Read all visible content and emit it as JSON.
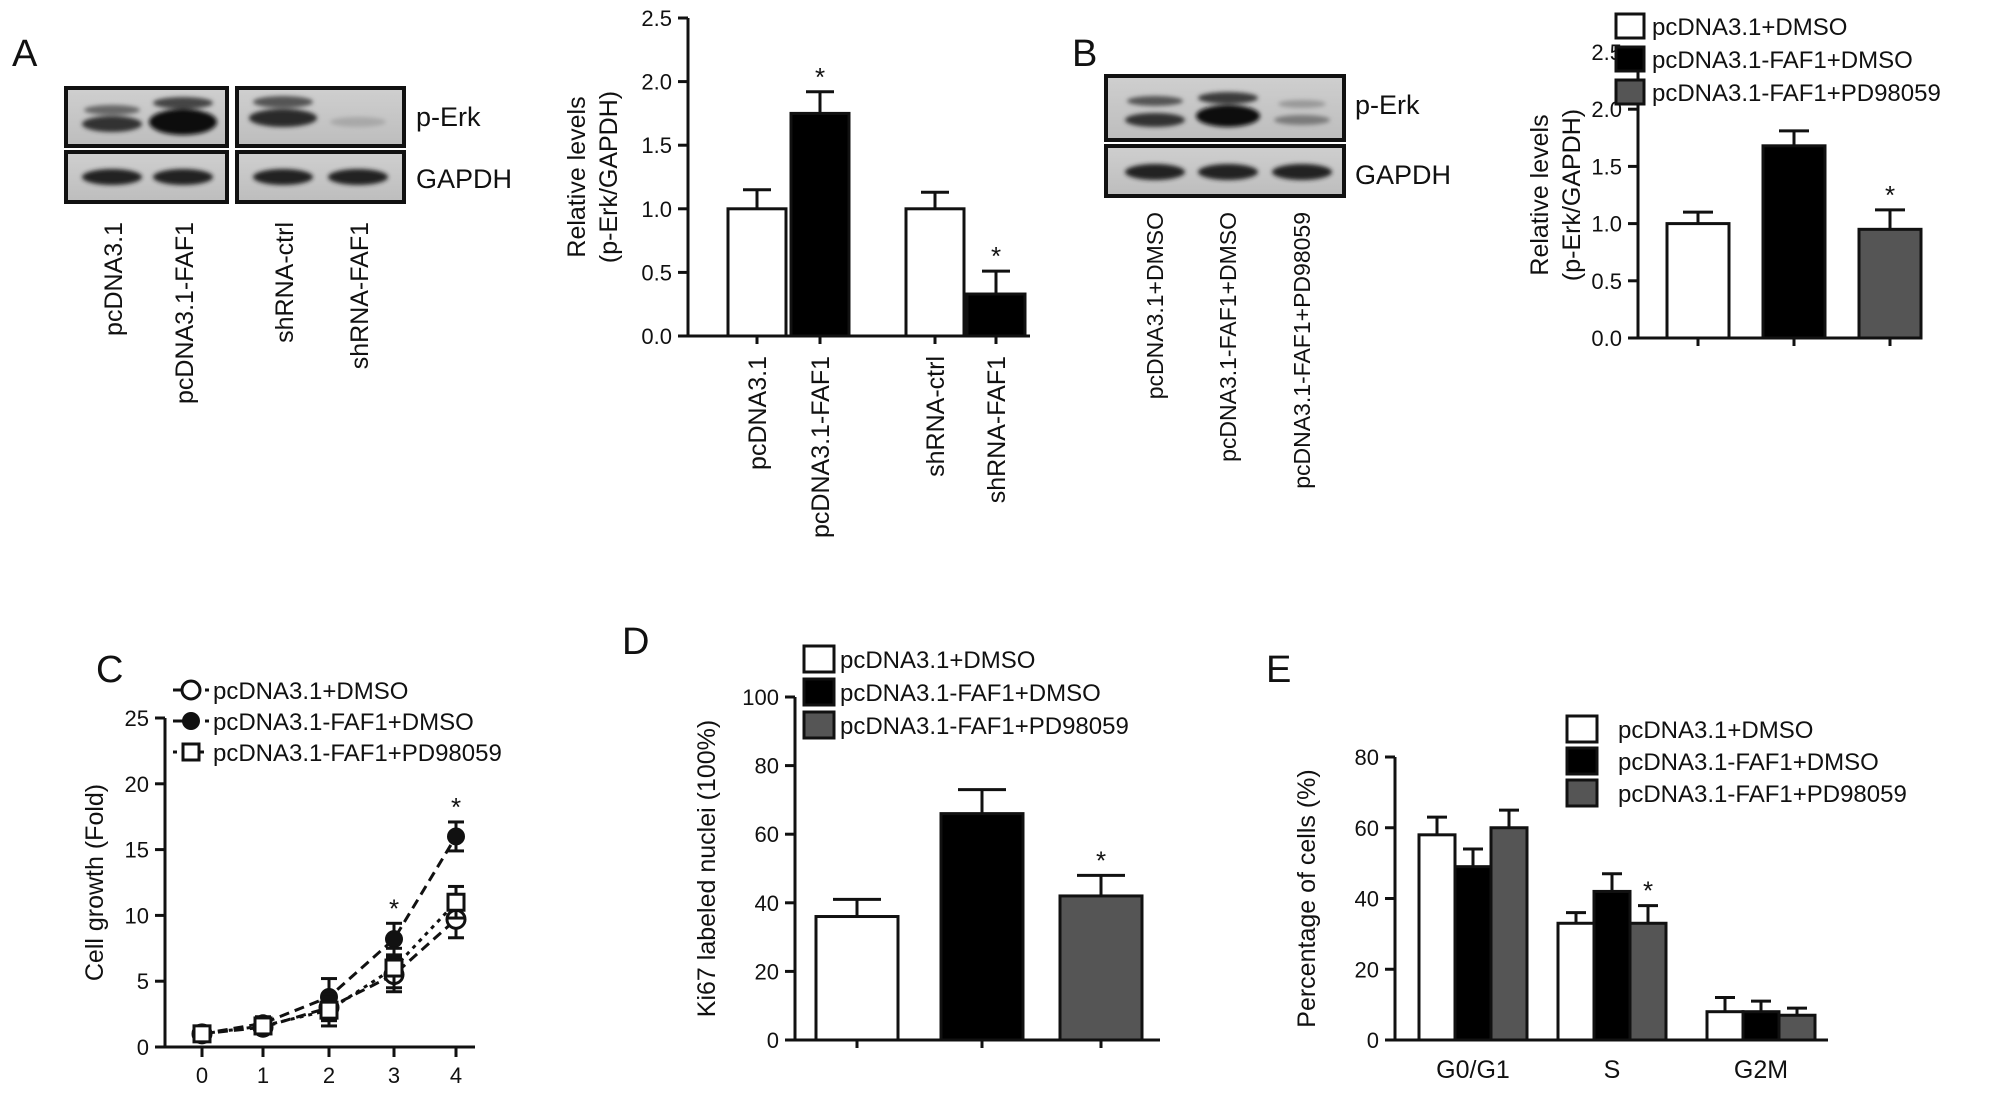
{
  "figure": {
    "panel_A": {
      "letter": "A",
      "blot": {
        "bands": [
          "p-Erk",
          "GAPDH"
        ],
        "lanes": [
          "pcDNA3.1",
          "pcDNA3.1-FAF1",
          "shRNA-ctrl",
          "shRNA-FAF1"
        ]
      }
    },
    "panel_B": {
      "letter": "B",
      "blot": {
        "bands": [
          "p-Erk",
          "GAPDH"
        ],
        "lanes": [
          "pcDNA3.1+DMSO",
          "pcDNA3.1-FAF1+DMSO",
          "pcDNA3.1-FAF1+PD98059"
        ]
      }
    },
    "panel_C": {
      "letter": "C"
    },
    "panel_D": {
      "letter": "D"
    },
    "panel_E": {
      "letter": "E"
    }
  },
  "colors": {
    "white_bar": "#ffffff",
    "black_bar": "#000000",
    "gray_bar": "#555555",
    "axis": "#111111"
  },
  "chart_data": [
    {
      "id": "A",
      "type": "bar",
      "categories": [
        "pcDNA3.1",
        "pcDNA3.1-FAF1",
        "shRNA-ctrl",
        "shRNA-FAF1"
      ],
      "values": [
        1.0,
        1.75,
        1.0,
        0.33
      ],
      "errors": [
        0.15,
        0.17,
        0.13,
        0.18
      ],
      "fills": [
        "white",
        "black",
        "white",
        "black"
      ],
      "significant": [
        false,
        true,
        false,
        true
      ],
      "significance_mark": "*",
      "ylabel": [
        "Relative levels",
        "(p-Erk/GAPDH)"
      ],
      "ylim": [
        0,
        2.5
      ],
      "yticks": [
        "0.0",
        "0.5",
        "1.0",
        "1.5",
        "2.0",
        "2.5"
      ]
    },
    {
      "id": "B",
      "type": "bar",
      "categories": [
        "pcDNA3.1+DMSO",
        "pcDNA3.1-FAF1+DMSO",
        "pcDNA3.1-FAF1+PD98059"
      ],
      "values": [
        1.0,
        1.68,
        0.95
      ],
      "errors": [
        0.1,
        0.13,
        0.17
      ],
      "fills": [
        "white",
        "black",
        "gray"
      ],
      "significant": [
        false,
        false,
        true
      ],
      "significance_mark": "*",
      "ylabel": [
        "Relative levels",
        "(p-Erk/GAPDH)"
      ],
      "ylim": [
        0,
        2.5
      ],
      "yticks": [
        "0.0",
        "0.5",
        "1.0",
        "1.5",
        "2.0",
        "2.5"
      ],
      "legend": [
        "pcDNA3.1+DMSO",
        "pcDNA3.1-FAF1+DMSO",
        "pcDNA3.1-FAF1+PD98059"
      ],
      "legend_position": "top-right"
    },
    {
      "id": "C",
      "type": "line",
      "x": [
        0,
        1,
        2,
        3,
        4
      ],
      "xticks": [
        "0",
        "1",
        "2",
        "3",
        "4"
      ],
      "series": [
        {
          "name": "pcDNA3.1+DMSO",
          "marker": "open-circle",
          "values": [
            1.0,
            1.5,
            3.0,
            5.5,
            9.7
          ],
          "errors": [
            0.3,
            0.5,
            1.0,
            1.3,
            1.4
          ]
        },
        {
          "name": "pcDNA3.1-FAF1+DMSO",
          "marker": "filled-circle",
          "values": [
            1.0,
            1.8,
            3.8,
            8.2,
            16.0
          ],
          "errors": [
            0.3,
            0.5,
            1.4,
            1.2,
            1.1
          ]
        },
        {
          "name": "pcDNA3.1-FAF1+PD98059",
          "marker": "open-square",
          "values": [
            1.0,
            1.6,
            2.8,
            6.0,
            11.0
          ],
          "errors": [
            0.3,
            0.5,
            1.2,
            1.5,
            1.2
          ]
        }
      ],
      "significant_x": [
        3,
        4
      ],
      "significance_mark": "*",
      "ylabel": "Cell growth (Fold)",
      "ylim": [
        0,
        25
      ],
      "yticks": [
        "0",
        "5",
        "10",
        "15",
        "20",
        "25"
      ],
      "legend_position": "top-left"
    },
    {
      "id": "D",
      "type": "bar",
      "categories": [
        "pcDNA3.1+DMSO",
        "pcDNA3.1-FAF1+DMSO",
        "pcDNA3.1-FAF1+PD98059"
      ],
      "values": [
        36,
        66,
        42
      ],
      "errors": [
        5,
        7,
        6
      ],
      "fills": [
        "white",
        "black",
        "gray"
      ],
      "significant": [
        false,
        false,
        true
      ],
      "significance_mark": "*",
      "ylabel": "Ki67 labeled nuclei (100%)",
      "ylim": [
        0,
        100
      ],
      "yticks": [
        "0",
        "20",
        "40",
        "60",
        "80",
        "100"
      ],
      "legend": [
        "pcDNA3.1+DMSO",
        "pcDNA3.1-FAF1+DMSO",
        "pcDNA3.1-FAF1+PD98059"
      ],
      "legend_position": "top"
    },
    {
      "id": "E",
      "type": "bar",
      "categories": [
        "G0/G1",
        "S",
        "G2M"
      ],
      "series": [
        {
          "name": "pcDNA3.1+DMSO",
          "fill": "white",
          "values": [
            58,
            33,
            8
          ],
          "errors": [
            5,
            3,
            4
          ]
        },
        {
          "name": "pcDNA3.1-FAF1+DMSO",
          "fill": "black",
          "values": [
            49,
            42,
            8
          ],
          "errors": [
            5,
            5,
            3
          ]
        },
        {
          "name": "pcDNA3.1-FAF1+PD98059",
          "fill": "gray",
          "values": [
            60,
            33,
            7
          ],
          "errors": [
            5,
            5,
            2
          ]
        }
      ],
      "significant": [
        [
          1,
          2
        ]
      ],
      "significance_mark": "*",
      "ylabel": "Percentage of cells (%)",
      "ylim": [
        0,
        80
      ],
      "yticks": [
        "0",
        "20",
        "40",
        "60",
        "80"
      ],
      "legend_position": "top-right"
    }
  ]
}
